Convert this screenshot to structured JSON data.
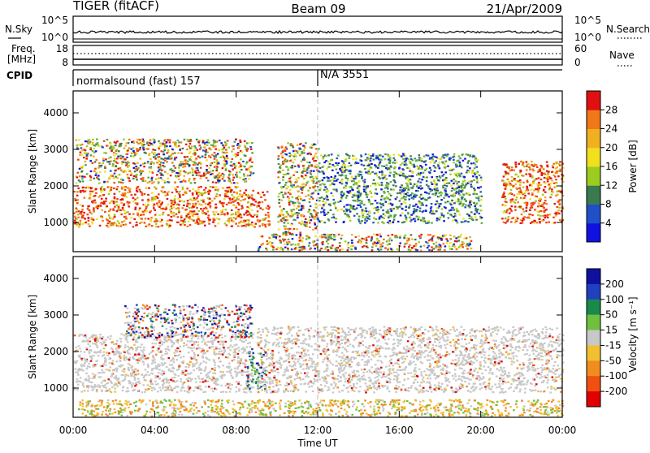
{
  "header": {
    "radar": "TIGER (fitACF)",
    "beam": "Beam 09",
    "date": "21/Apr/2009"
  },
  "sky_panel": {
    "left_label": "N.Sky",
    "left_ticks": [
      "10^5",
      "10^0"
    ],
    "right_ticks": [
      "10^5",
      "10^0"
    ],
    "right_label": "N.Search"
  },
  "freq_panel": {
    "left_label_1": "Freq.",
    "left_label_2": "[MHz]",
    "left_ticks": [
      "18",
      "8"
    ],
    "right_ticks": [
      "60",
      "0"
    ],
    "right_label": "Nave"
  },
  "cpid": {
    "label": "CPID",
    "segment_1": "normalsound (fast) 157",
    "segment_2": "N/A 3551"
  },
  "colors": {
    "power_scale": [
      "#1010e0",
      "#2050c8",
      "#3a7a50",
      "#4c9a58",
      "#5ab040",
      "#9ccc20",
      "#f0e020",
      "#f0b020",
      "#f07818",
      "#f04010",
      "#e01010"
    ],
    "velocity_scale": [
      "#e00000",
      "#f05010",
      "#f08c20",
      "#f0c030",
      "#c8c8c8",
      "#c8c8c8",
      "#70c040",
      "#40a040",
      "#1a8a4a",
      "#2040c0",
      "#1010a0"
    ]
  },
  "chart_data": [
    {
      "type": "heatmap",
      "title": "Power",
      "ylabel": "Slant Range [km]",
      "xlabel": "",
      "ylim": [
        200,
        4600
      ],
      "xlim": [
        0,
        24
      ],
      "yticks": [
        "1000",
        "2000",
        "3000",
        "4000"
      ],
      "colorbar_label": "Power [dB]",
      "colorbar_ticks": [
        "4",
        "8",
        "12",
        "16",
        "20",
        "24",
        "28"
      ],
      "colorbar_range": [
        0,
        32
      ],
      "regions": [
        {
          "t": [
            0.0,
            8.6
          ],
          "r": [
            900,
            2000
          ],
          "level": "high"
        },
        {
          "t": [
            0.1,
            8.8
          ],
          "r": [
            2100,
            3300
          ],
          "level": "mid"
        },
        {
          "t": [
            8.5,
            9.6
          ],
          "r": [
            900,
            1900
          ],
          "level": "high"
        },
        {
          "t": [
            10.0,
            12.0
          ],
          "r": [
            700,
            3200
          ],
          "level": "mid"
        },
        {
          "t": [
            9.0,
            19.5
          ],
          "r": [
            250,
            700
          ],
          "level": "mid"
        },
        {
          "t": [
            12.0,
            20.0
          ],
          "r": [
            1000,
            2900
          ],
          "level": "low"
        },
        {
          "t": [
            21.0,
            24.0
          ],
          "r": [
            1000,
            2700
          ],
          "level": "high"
        }
      ]
    },
    {
      "type": "heatmap",
      "title": "Velocity",
      "ylabel": "Slant Range [km]",
      "xlabel": "Time UT",
      "ylim": [
        200,
        4600
      ],
      "xlim": [
        0,
        24
      ],
      "xticks": [
        "00:00",
        "04:00",
        "08:00",
        "12:00",
        "16:00",
        "20:00",
        "00:00"
      ],
      "yticks": [
        "1000",
        "2000",
        "3000",
        "4000"
      ],
      "colorbar_label": "Velocity [m s⁻¹]",
      "colorbar_ticks": [
        "200",
        "100",
        "50",
        "15",
        "-15",
        "-50",
        "-100",
        "-200"
      ],
      "regions": [
        {
          "t": [
            0.0,
            8.8
          ],
          "r": [
            900,
            2500
          ],
          "level": "ground"
        },
        {
          "t": [
            2.5,
            8.8
          ],
          "r": [
            2400,
            3300
          ],
          "level": "mixed"
        },
        {
          "t": [
            8.5,
            9.4
          ],
          "r": [
            1000,
            2100
          ],
          "level": "positive"
        },
        {
          "t": [
            9.0,
            24.0
          ],
          "r": [
            900,
            2700
          ],
          "level": "ground"
        },
        {
          "t": [
            0.0,
            24.0
          ],
          "r": [
            250,
            700
          ],
          "level": "negative"
        }
      ]
    }
  ]
}
